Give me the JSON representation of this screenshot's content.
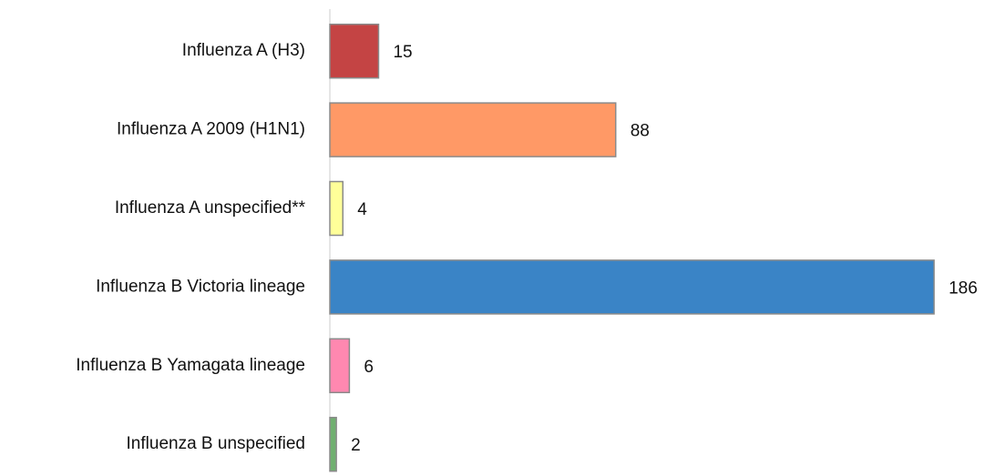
{
  "chart_data": {
    "type": "bar",
    "orientation": "horizontal",
    "categories": [
      "Influenza A (H3)",
      "Influenza A 2009 (H1N1)",
      "Influenza A unspecified**",
      "Influenza B Victoria lineage",
      "Influenza B Yamagata lineage",
      "Influenza B unspecified"
    ],
    "values": [
      15,
      88,
      4,
      186,
      6,
      2
    ],
    "colors": [
      "#c44444",
      "#ff9966",
      "#ffff99",
      "#3a84c6",
      "#ff88b0",
      "#70b070"
    ]
  }
}
